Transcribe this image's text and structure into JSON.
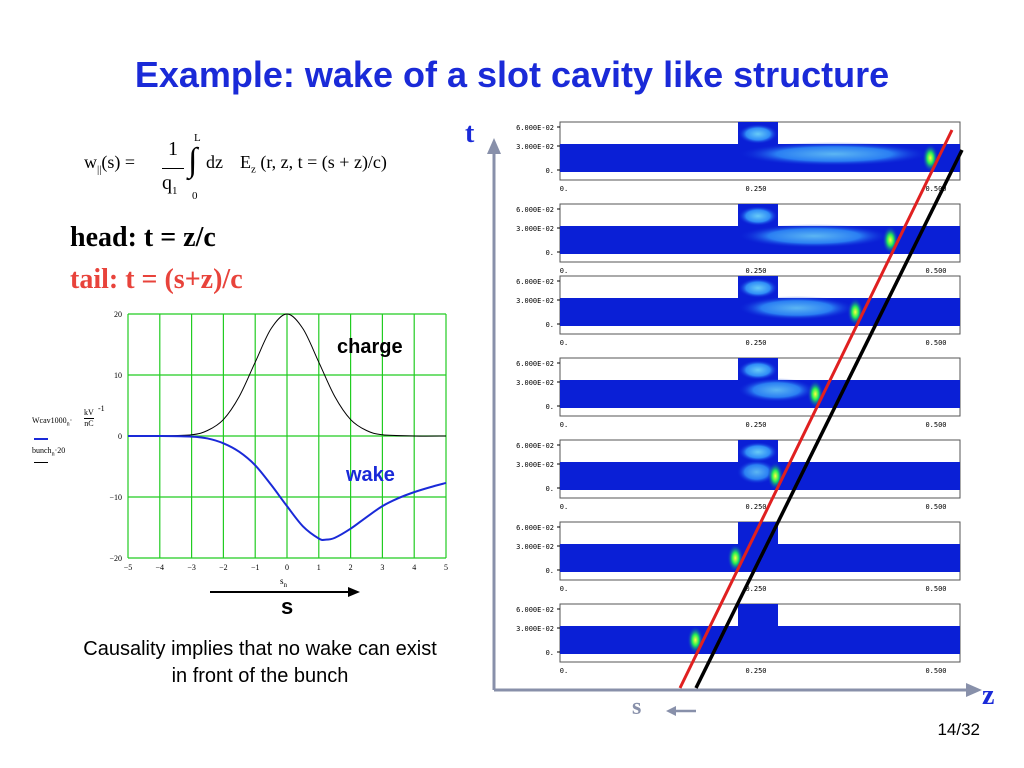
{
  "slide": {
    "title": "Example: wake of a slot cavity like structure",
    "page": "14/32"
  },
  "equation": {
    "lhs": "w",
    "lhs_sub": "||",
    "lhs_arg": "(s) =",
    "frac_num": "1",
    "frac_den": "q",
    "frac_den_sub": "1",
    "int_upper": "L",
    "int_lower": "0",
    "integrand_dz": "dz",
    "field": "E",
    "field_sub": "z",
    "field_args": "(r, z, t = (s + z)/c)"
  },
  "definitions": {
    "head": "head:  t = z/c",
    "tail": "tail:    t = (s+z)/c"
  },
  "left_plot": {
    "charge_label": "charge",
    "wake_label": "wake",
    "ylabel_line1": "Wcav1000",
    "ylabel_sub1": "n",
    "ylabel_unit_num": "kV",
    "ylabel_unit_den": "nC",
    "ylabel_exp": "-1",
    "ylabel_line2": "bunch",
    "ylabel_sub2": "n",
    "ylabel_factor": "20",
    "xlabel": "s",
    "xlabel_sub": "n",
    "arrow_label": "s",
    "charge_color": "#000000",
    "wake_color": "#1a2ad8",
    "grid_color": "#22cc22"
  },
  "chart_data": [
    {
      "type": "line",
      "xlim": [
        -5,
        5
      ],
      "ylim": [
        -20,
        20
      ],
      "x_ticks": [
        "-5",
        "-4",
        "-3",
        "-2",
        "-1",
        "0",
        "1",
        "2",
        "3",
        "4",
        "5"
      ],
      "y_ticks": [
        "20",
        "10",
        "0",
        "-10",
        "-20"
      ],
      "grid": true,
      "series": [
        {
          "name": "charge",
          "x": [
            -5,
            -4,
            -3,
            -2.5,
            -2,
            -1.5,
            -1,
            -0.5,
            0,
            0.5,
            1,
            1.5,
            2,
            2.5,
            3,
            4,
            5
          ],
          "y": [
            0,
            0,
            0.2,
            0.9,
            2.7,
            6.5,
            12.1,
            17.6,
            20,
            17.6,
            12.1,
            6.5,
            2.7,
            0.9,
            0.2,
            0,
            0
          ]
        },
        {
          "name": "wake",
          "x": [
            -5,
            -4,
            -3,
            -2.5,
            -2,
            -1.5,
            -1,
            -0.5,
            0,
            0.5,
            1,
            1.2,
            1.5,
            2,
            2.5,
            3,
            3.5,
            4,
            4.5,
            5
          ],
          "y": [
            0,
            0,
            -0.1,
            -0.4,
            -1.2,
            -2.6,
            -4.8,
            -8,
            -11.5,
            -14.8,
            -16.8,
            -17,
            -16.7,
            -15.2,
            -13.3,
            -11.5,
            -10.2,
            -9.2,
            -8.4,
            -7.7
          ]
        }
      ]
    }
  ],
  "sim_panels": {
    "y_ticks": [
      "6.000E-02",
      "3.000E-02",
      "0."
    ],
    "x_ticks": [
      "0.",
      "0.250",
      "0.500"
    ],
    "axis_t": "t",
    "axis_z": "z",
    "axis_s": "s",
    "head_line_color": "#000000",
    "tail_line_color": "#e02020",
    "field_color": "#0a1fd6"
  }
}
